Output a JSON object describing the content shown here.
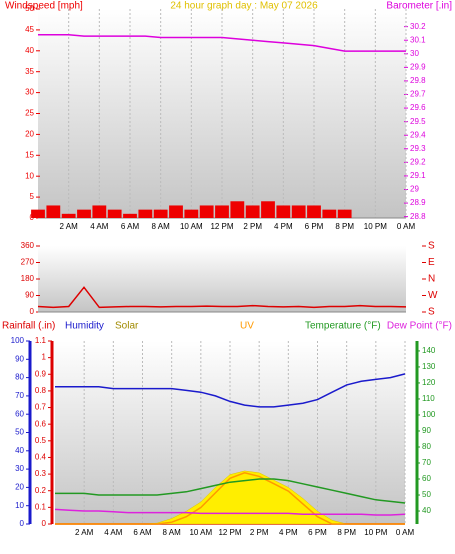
{
  "chart_data": [
    {
      "type": "line",
      "title": "24 hour graph day : May 07 2026",
      "grid": true,
      "x": [
        0,
        1,
        2,
        3,
        4,
        5,
        6,
        7,
        8,
        9,
        10,
        11,
        12,
        13,
        14,
        15,
        16,
        17,
        18,
        19,
        20,
        21,
        22,
        23,
        24
      ],
      "xlim": [
        0,
        24
      ],
      "xticks": [
        {
          "value": 2,
          "label": "2 AM"
        },
        {
          "value": 4,
          "label": "4 AM"
        },
        {
          "value": 6,
          "label": "6 AM"
        },
        {
          "value": 8,
          "label": "8 AM"
        },
        {
          "value": 10,
          "label": "10 AM"
        },
        {
          "value": 12,
          "label": "12 PM"
        },
        {
          "value": 14,
          "label": "2 PM"
        },
        {
          "value": 16,
          "label": "4 PM"
        },
        {
          "value": 18,
          "label": "6 PM"
        },
        {
          "value": 20,
          "label": "8 PM"
        },
        {
          "value": 22,
          "label": "10 PM"
        },
        {
          "value": 24,
          "label": "0 AM"
        }
      ],
      "ylim": [
        0,
        50
      ],
      "yticks": [
        0,
        5,
        10,
        15,
        20,
        25,
        30,
        35,
        40,
        45,
        50
      ],
      "y2lim": [
        28.79,
        30.33
      ],
      "y2ticks": [
        28.8,
        28.9,
        29,
        29.1,
        29.2,
        29.3,
        29.4,
        29.5,
        29.6,
        29.7,
        29.8,
        29.9,
        30,
        30.1,
        30.2
      ],
      "series": [
        {
          "name": "Windspeed [mph]",
          "type": "bar",
          "color": "#ee0000",
          "axis": "y",
          "values": [
            2,
            3,
            1,
            2,
            3,
            2,
            1,
            2,
            2,
            3,
            2,
            3,
            3,
            4,
            3,
            4,
            3,
            3,
            3,
            2,
            2,
            0,
            0,
            0,
            0
          ]
        },
        {
          "name": "Barometer [.in]",
          "type": "line",
          "color": "#dd00dd",
          "axis": "y2",
          "values": [
            30.14,
            30.14,
            30.14,
            30.13,
            30.13,
            30.13,
            30.13,
            30.13,
            30.12,
            30.12,
            30.12,
            30.12,
            30.12,
            30.11,
            30.1,
            30.09,
            30.08,
            30.07,
            30.06,
            30.04,
            30.02,
            30.02,
            30.02,
            30.02,
            30.02
          ]
        }
      ]
    },
    {
      "type": "line",
      "grid": true,
      "x": [
        0,
        1,
        2,
        3,
        4,
        5,
        6,
        7,
        8,
        9,
        10,
        11,
        12,
        13,
        14,
        15,
        16,
        17,
        18,
        19,
        20,
        21,
        22,
        23,
        24
      ],
      "xlim": [
        0,
        24
      ],
      "ylim": [
        0,
        360
      ],
      "yticks": [
        0,
        90,
        180,
        270,
        360
      ],
      "y2lim": [
        0,
        360
      ],
      "y2ticks": [
        {
          "value": 0,
          "label": "S"
        },
        {
          "value": 90,
          "label": "W"
        },
        {
          "value": 180,
          "label": "N"
        },
        {
          "value": 270,
          "label": "E"
        },
        {
          "value": 360,
          "label": "S"
        }
      ],
      "series": [
        {
          "type": "line",
          "color": "#dd0000",
          "axis": "y",
          "values": [
            30,
            25,
            30,
            135,
            25,
            28,
            30,
            30,
            28,
            30,
            30,
            32,
            30,
            30,
            35,
            30,
            28,
            30,
            25,
            30,
            30,
            35,
            30,
            30,
            28
          ]
        }
      ]
    },
    {
      "type": "line",
      "grid": true,
      "x": [
        0,
        1,
        2,
        3,
        4,
        5,
        6,
        7,
        8,
        9,
        10,
        11,
        12,
        13,
        14,
        15,
        16,
        17,
        18,
        19,
        20,
        21,
        22,
        23,
        24
      ],
      "xlim": [
        0,
        24
      ],
      "xticks": [
        {
          "value": 2,
          "label": "2 AM"
        },
        {
          "value": 4,
          "label": "4 AM"
        },
        {
          "value": 6,
          "label": "6 AM"
        },
        {
          "value": 8,
          "label": "8 AM"
        },
        {
          "value": 10,
          "label": "10 AM"
        },
        {
          "value": 12,
          "label": "12 PM"
        },
        {
          "value": 14,
          "label": "2 PM"
        },
        {
          "value": 16,
          "label": "4 PM"
        },
        {
          "value": 18,
          "label": "6 PM"
        },
        {
          "value": 20,
          "label": "8 PM"
        },
        {
          "value": 22,
          "label": "10 PM"
        },
        {
          "value": 24,
          "label": "0 AM"
        }
      ],
      "ylim": [
        0,
        100
      ],
      "yticks": [
        0,
        10,
        20,
        30,
        40,
        50,
        60,
        70,
        80,
        90,
        100
      ],
      "y3lim": [
        0,
        1.1
      ],
      "y3ticks": [
        0,
        0.1,
        0.2,
        0.3,
        0.4,
        0.5,
        0.6,
        0.7,
        0.8,
        0.9,
        1,
        1.1
      ],
      "y2lim": [
        31.9,
        146.2
      ],
      "y2ticks": [
        40,
        50,
        60,
        70,
        80,
        90,
        100,
        110,
        120,
        130,
        140
      ],
      "series": [
        {
          "name": "Rainfall (.in)",
          "type": "line",
          "color": "#dd0000",
          "axis": "y3",
          "values": [
            0,
            0,
            0,
            0,
            0,
            0,
            0,
            0,
            0,
            0,
            0,
            0,
            0,
            0,
            0,
            0,
            0,
            0,
            0,
            0,
            0,
            0,
            0,
            0,
            0
          ]
        },
        {
          "name": "Humidity",
          "type": "line",
          "color": "#1a1acc",
          "axis": "y",
          "values": [
            75,
            75,
            75,
            75,
            74,
            74,
            74,
            74,
            74,
            73,
            72,
            70,
            67,
            65,
            64,
            64,
            65,
            66,
            68,
            72,
            76,
            78,
            79,
            80,
            82
          ]
        },
        {
          "name": "Solar",
          "type": "area",
          "color": "#ffee00",
          "axis": "y",
          "values": [
            0,
            0,
            0,
            0,
            0,
            0,
            0,
            0.5,
            3,
            7,
            12,
            20,
            27,
            29,
            28,
            24,
            20,
            14,
            7,
            2,
            0,
            0,
            0,
            0,
            0
          ]
        },
        {
          "name": "UV",
          "type": "line",
          "color": "#ff9900",
          "axis": "y",
          "values": [
            0,
            0,
            0,
            0,
            0,
            0,
            0,
            0,
            1,
            4,
            9,
            17,
            25,
            28,
            26,
            22,
            18,
            11,
            4,
            0,
            0,
            0,
            0,
            0,
            0
          ]
        },
        {
          "name": "Temperature (°F)",
          "type": "line",
          "color": "#229922",
          "axis": "y2",
          "values": [
            51,
            51,
            51,
            50,
            50,
            50,
            50,
            50,
            51,
            52,
            54,
            56,
            58,
            59,
            60,
            60,
            59,
            57,
            55,
            53,
            51,
            49,
            47,
            46,
            45
          ]
        },
        {
          "name": "Dew Point (°F)",
          "type": "line",
          "color": "#dd22dd",
          "axis": "y2",
          "values": [
            41,
            40.5,
            40,
            40,
            39.5,
            39,
            39,
            39,
            39,
            39,
            38.5,
            38.5,
            38.5,
            38.5,
            38.5,
            38.5,
            38.5,
            38,
            38,
            38,
            38,
            38,
            37.5,
            37.5,
            38
          ]
        }
      ]
    }
  ]
}
